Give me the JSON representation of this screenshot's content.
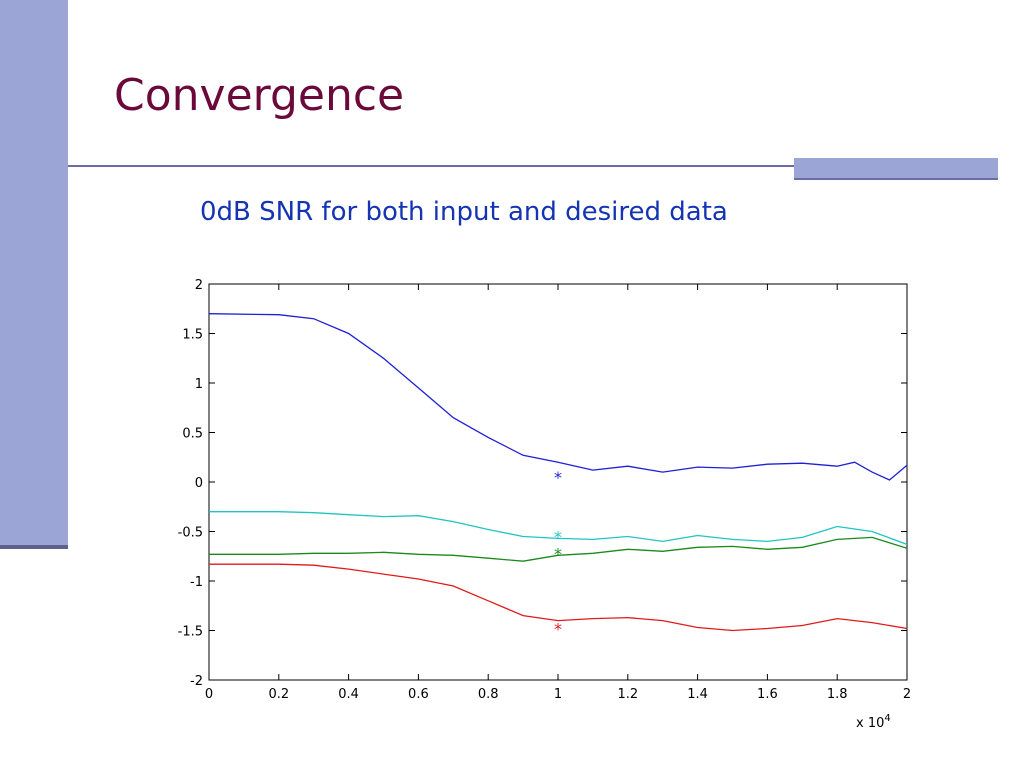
{
  "slide": {
    "title": "Convergence",
    "subtitle": "0dB SNR for both input and desired data"
  },
  "colors": {
    "title": "#6b0a3a",
    "subtitle": "#1434b4",
    "accent_bar": "#9ba5d6"
  },
  "chart_data": {
    "type": "line",
    "title": "",
    "xlabel": "",
    "ylabel": "",
    "x_multiplier_label": "x 10",
    "x_multiplier_exponent": "4",
    "xlim": [
      0,
      2
    ],
    "ylim": [
      -2,
      2
    ],
    "xticks": [
      0,
      0.2,
      0.4,
      0.6,
      0.8,
      1,
      1.2,
      1.4,
      1.6,
      1.8,
      2
    ],
    "xtick_labels": [
      "0",
      "0.2",
      "0.4",
      "0.6",
      "0.8",
      "1",
      "1.2",
      "1.4",
      "1.6",
      "1.8",
      "2"
    ],
    "yticks": [
      2,
      1.5,
      1,
      0.5,
      0,
      -0.5,
      -1,
      -1.5,
      -2
    ],
    "ytick_labels": [
      "2",
      "1.5",
      "1",
      "0.5",
      "0",
      "-0.5",
      "-1",
      "-1.5",
      "-2"
    ],
    "grid": false,
    "series": [
      {
        "color": "#1f1fd6",
        "x": [
          0,
          0.2,
          0.3,
          0.4,
          0.5,
          0.6,
          0.7,
          0.8,
          0.9,
          1.0,
          1.1,
          1.2,
          1.3,
          1.4,
          1.5,
          1.6,
          1.7,
          1.8,
          1.85,
          1.9,
          1.95,
          2.0
        ],
        "y": [
          1.7,
          1.69,
          1.65,
          1.5,
          1.25,
          0.95,
          0.65,
          0.45,
          0.27,
          0.2,
          0.12,
          0.16,
          0.1,
          0.15,
          0.14,
          0.18,
          0.19,
          0.16,
          0.2,
          0.1,
          0.02,
          0.17
        ],
        "marker_x": 1.0,
        "marker_y": 0.05
      },
      {
        "color": "#21c4c4",
        "x": [
          0,
          0.2,
          0.3,
          0.4,
          0.5,
          0.6,
          0.7,
          0.8,
          0.9,
          1.0,
          1.1,
          1.2,
          1.3,
          1.4,
          1.5,
          1.6,
          1.7,
          1.8,
          1.9,
          2.0
        ],
        "y": [
          -0.3,
          -0.3,
          -0.31,
          -0.33,
          -0.35,
          -0.34,
          -0.4,
          -0.48,
          -0.55,
          -0.57,
          -0.58,
          -0.55,
          -0.6,
          -0.54,
          -0.58,
          -0.6,
          -0.56,
          -0.45,
          -0.5,
          -0.63
        ],
        "marker_x": 1.0,
        "marker_y": -0.55
      },
      {
        "color": "#1b8a1b",
        "x": [
          0,
          0.2,
          0.3,
          0.4,
          0.5,
          0.6,
          0.7,
          0.8,
          0.9,
          1.0,
          1.1,
          1.2,
          1.3,
          1.4,
          1.5,
          1.6,
          1.7,
          1.8,
          1.9,
          2.0
        ],
        "y": [
          -0.73,
          -0.73,
          -0.72,
          -0.72,
          -0.71,
          -0.73,
          -0.74,
          -0.77,
          -0.8,
          -0.74,
          -0.72,
          -0.68,
          -0.7,
          -0.66,
          -0.65,
          -0.68,
          -0.66,
          -0.58,
          -0.56,
          -0.67
        ],
        "marker_x": 1.0,
        "marker_y": -0.72
      },
      {
        "color": "#e01b1b",
        "x": [
          0,
          0.2,
          0.3,
          0.4,
          0.5,
          0.6,
          0.7,
          0.8,
          0.9,
          1.0,
          1.1,
          1.2,
          1.3,
          1.4,
          1.5,
          1.6,
          1.7,
          1.8,
          1.9,
          2.0
        ],
        "y": [
          -0.83,
          -0.83,
          -0.84,
          -0.88,
          -0.93,
          -0.98,
          -1.05,
          -1.2,
          -1.35,
          -1.4,
          -1.38,
          -1.37,
          -1.4,
          -1.47,
          -1.5,
          -1.48,
          -1.45,
          -1.38,
          -1.42,
          -1.48
        ],
        "marker_x": 1.0,
        "marker_y": -1.48
      }
    ]
  }
}
